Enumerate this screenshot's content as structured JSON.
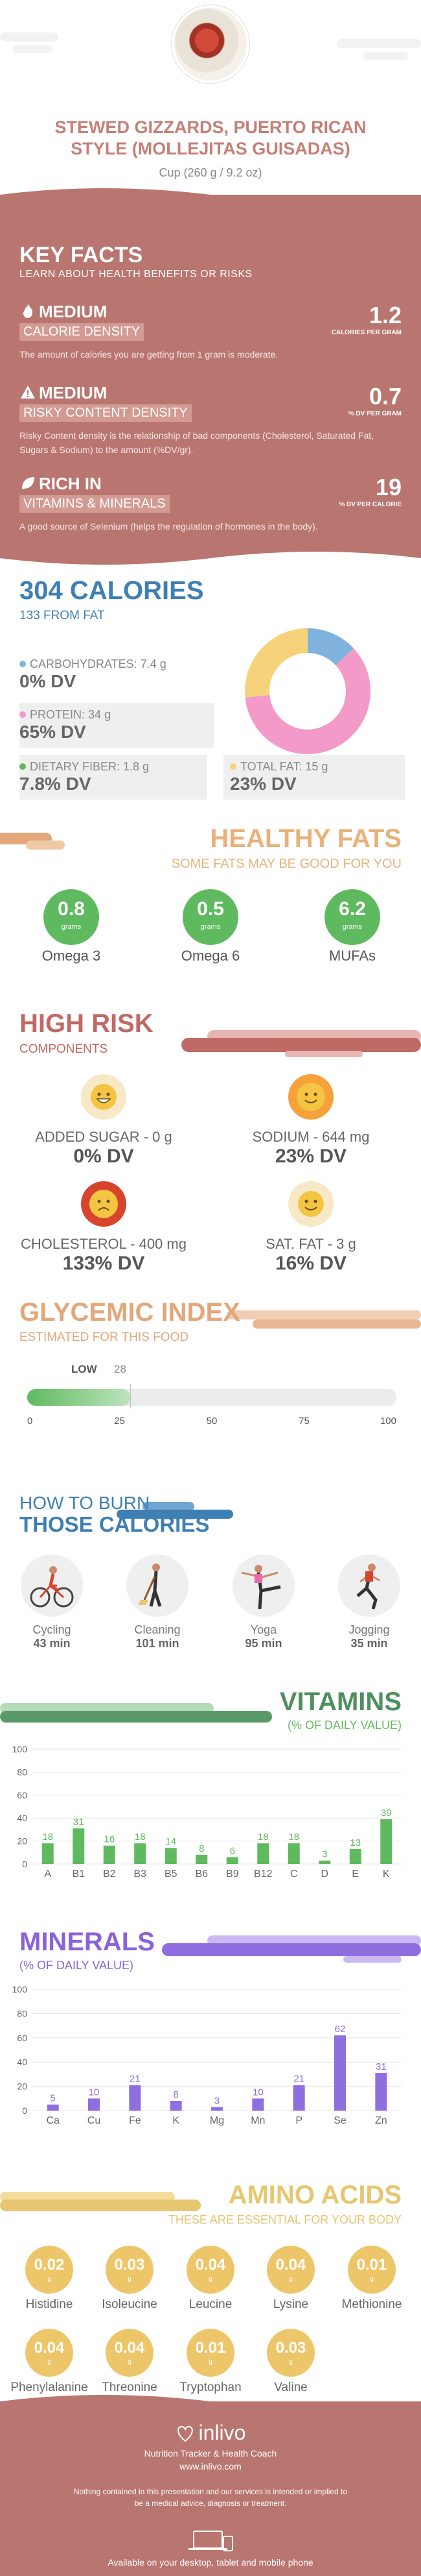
{
  "header": {
    "title": "STEWED GIZZARDS, PUERTO RICAN STYLE (MOLLEJITAS GUISADAS)",
    "serving": "Cup (260 g / 9.2 oz)"
  },
  "key_facts": {
    "title": "KEY FACTS",
    "subtitle": "LEARN ABOUT HEALTH BENEFITS OR RISKS",
    "items": [
      {
        "level": "MEDIUM",
        "category": "CALORIE DENSITY",
        "value": "1.2",
        "unit": "CALORIES PER GRAM",
        "description": "The amount of calories you are getting from 1 gram is moderate."
      },
      {
        "level": "MEDIUM",
        "category": "RISKY CONTENT DENSITY",
        "value": "0.7",
        "unit": "% DV PER GRAM",
        "description": "Risky Content density is the relationship of bad components (Cholesterol, Saturated Fat, Sugars & Sodium) to the amount (%DV/gr)."
      },
      {
        "level": "RICH IN",
        "category": "VITAMINS & MINERALS",
        "value": "19",
        "unit": "% DV PER CALORIE",
        "description": "A good source of Selenium (helps the regulation of hormones in the body)."
      }
    ]
  },
  "calories": {
    "title": "304 CALORIES",
    "from_fat": "133 FROM FAT",
    "carbs_label": "CARBOHYDRATES: 7.4 g",
    "carbs_dv": "0% DV",
    "protein_label": "PROTEIN: 34 g",
    "protein_dv": "65% DV",
    "fiber_label": "DIETARY FIBER: 1.8 g",
    "fiber_dv": "7.8% DV",
    "fat_label": "TOTAL FAT: 15 g",
    "fat_dv": "23% DV",
    "colors": {
      "carbs": "#7fb3dd",
      "protein": "#f49ac9",
      "fat": "#f6d37a",
      "fiber": "#5fba5f"
    },
    "donut": [
      {
        "name": "carbs",
        "value": 7.4
      },
      {
        "name": "protein",
        "value": 34
      },
      {
        "name": "fat",
        "value": 15
      }
    ]
  },
  "healthy_fats": {
    "title": "HEALTHY FATS",
    "subtitle": "SOME FATS MAY BE GOOD FOR YOU",
    "unit": "grams",
    "items": [
      {
        "value": "0.8",
        "label": "Omega 3"
      },
      {
        "value": "0.5",
        "label": "Omega 6"
      },
      {
        "value": "6.2",
        "label": "MUFAs"
      }
    ]
  },
  "high_risk": {
    "title": "HIGH RISK",
    "subtitle": "COMPONENTS",
    "items": [
      {
        "label": "ADDED SUGAR - 0 g",
        "dv": "0% DV",
        "face": "happy-face-icon"
      },
      {
        "label": "SODIUM - 644 mg",
        "dv": "23% DV",
        "face": "smile-face-icon"
      },
      {
        "label": "CHOLESTEROL - 400 mg",
        "dv": "133% DV",
        "face": "sad-face-icon"
      },
      {
        "label": "SAT. FAT - 3 g",
        "dv": "16% DV",
        "face": "smile-face-icon"
      }
    ]
  },
  "glycemic": {
    "title": "GLYCEMIC INDEX",
    "subtitle": "ESTIMATED FOR THIS FOOD",
    "level": "LOW",
    "value": 28,
    "ticks": [
      "0",
      "25",
      "50",
      "75",
      "100"
    ]
  },
  "burn": {
    "title_line1": "HOW TO BURN",
    "title_line2": "THOSE CALORIES",
    "activities": [
      {
        "label": "Cycling",
        "minutes": "43 min",
        "icon": "cycling-icon"
      },
      {
        "label": "Cleaning",
        "minutes": "101 min",
        "icon": "cleaning-icon"
      },
      {
        "label": "Yoga",
        "minutes": "95 min",
        "icon": "yoga-icon"
      },
      {
        "label": "Jogging",
        "minutes": "35 min",
        "icon": "jogging-icon"
      }
    ]
  },
  "chart_data": [
    {
      "type": "bar",
      "title": "VITAMINS",
      "subtitle": "(% OF DAILY VALUE)",
      "categories": [
        "A",
        "B1",
        "B2",
        "B3",
        "B5",
        "B6",
        "B9",
        "B12",
        "C",
        "D",
        "E",
        "K"
      ],
      "values": [
        18,
        31,
        16,
        18,
        14,
        8,
        6,
        18,
        18,
        3,
        13,
        39
      ],
      "ylim": [
        0,
        100
      ],
      "yticks": [
        "0",
        "20",
        "40",
        "60",
        "80",
        "100"
      ],
      "color": "#5fba5f"
    },
    {
      "type": "bar",
      "title": "MINERALS",
      "subtitle": "(% OF DAILY VALUE)",
      "categories": [
        "Ca",
        "Cu",
        "Fe",
        "K",
        "Mg",
        "Mn",
        "P",
        "Se",
        "Zn"
      ],
      "values": [
        5,
        10,
        21,
        8,
        3,
        10,
        21,
        62,
        31
      ],
      "ylim": [
        0,
        100
      ],
      "yticks": [
        "0",
        "20",
        "40",
        "60",
        "80",
        "100"
      ],
      "color": "#8f6fe0"
    }
  ],
  "amino": {
    "title": "AMINO ACIDS",
    "subtitle": "THESE ARE ESSENTIAL FOR YOUR BODY",
    "unit": "g",
    "items": [
      {
        "value": "0.02",
        "label": "Histidine"
      },
      {
        "value": "0.03",
        "label": "Isoleucine"
      },
      {
        "value": "0.04",
        "label": "Leucine"
      },
      {
        "value": "0.04",
        "label": "Lysine"
      },
      {
        "value": "0.01",
        "label": "Methionine"
      },
      {
        "value": "0.04",
        "label": "Phenylalanine"
      },
      {
        "value": "0.04",
        "label": "Threonine"
      },
      {
        "value": "0.01",
        "label": "Tryptophan"
      },
      {
        "value": "0.03",
        "label": "Valine"
      }
    ]
  },
  "footer": {
    "brand": "inlivo",
    "tagline": "Nutrition Tracker & Health Coach",
    "url": "www.inlivo.com",
    "disclaimer": "Nothing contained in this presentation and our services is intended or implied to be a medical advice, diagnosis or treatment.",
    "available": "Available on your desktop, tablet and mobile phone"
  }
}
